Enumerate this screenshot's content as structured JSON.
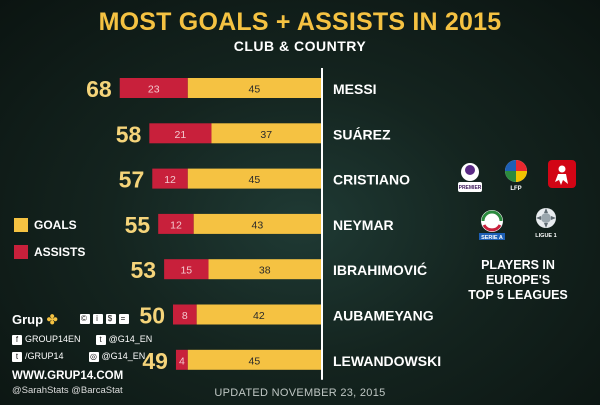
{
  "header": {
    "title": "MOST GOALS + ASSISTS IN 2015",
    "subtitle": "CLUB & COUNTRY"
  },
  "colors": {
    "goals": "#f5c242",
    "assists": "#c8203b",
    "accent": "#f5c242"
  },
  "chart_data": {
    "type": "bar",
    "orientation": "horizontal",
    "stacked": true,
    "categories": [
      "MESSI",
      "SUÁREZ",
      "CRISTIANO",
      "NEYMAR",
      "IBRAHIMOVIĆ",
      "AUBAMEYANG",
      "LEWANDOWSKI"
    ],
    "totals": [
      68,
      58,
      57,
      55,
      53,
      50,
      49
    ],
    "series": [
      {
        "name": "ASSISTS",
        "values": [
          23,
          21,
          12,
          12,
          15,
          8,
          4
        ]
      },
      {
        "name": "GOALS",
        "values": [
          45,
          37,
          45,
          43,
          38,
          42,
          45
        ]
      }
    ],
    "legend": "left"
  },
  "legend": {
    "items": [
      {
        "label": "GOALS",
        "color": "#f5c242"
      },
      {
        "label": "ASSISTS",
        "color": "#c8203b"
      }
    ]
  },
  "leagues": {
    "caption": [
      "PLAYERS IN",
      "EUROPE'S",
      "TOP 5 LEAGUES"
    ],
    "logos": [
      {
        "icon": "premier-league-icon",
        "text": "PREMIER LEAGUE"
      },
      {
        "icon": "lfp-icon",
        "text": "LFP"
      },
      {
        "icon": "bundesliga-icon",
        "text": "BUNDESLIGA"
      },
      {
        "icon": "serie-a-icon",
        "text": "SERIE A"
      },
      {
        "icon": "ligue-1-icon",
        "text": "LIGUE 1"
      }
    ]
  },
  "branding": {
    "logo_text": "Grup",
    "social": [
      {
        "icon": "facebook-icon",
        "glyph": "f",
        "text": "GROUP14EN"
      },
      {
        "icon": "twitter-icon",
        "glyph": "t",
        "text": "@G14_EN"
      },
      {
        "icon": "tumblr-icon",
        "glyph": "t",
        "text": "/GRUP14"
      },
      {
        "icon": "instagram-icon",
        "glyph": "◎",
        "text": "@G14_EN"
      }
    ],
    "website": "WWW.GRUP14.COM",
    "handles": "@SarahStats @BarcaStat"
  },
  "footer": {
    "updated": "UPDATED NOVEMBER 23, 2015"
  }
}
